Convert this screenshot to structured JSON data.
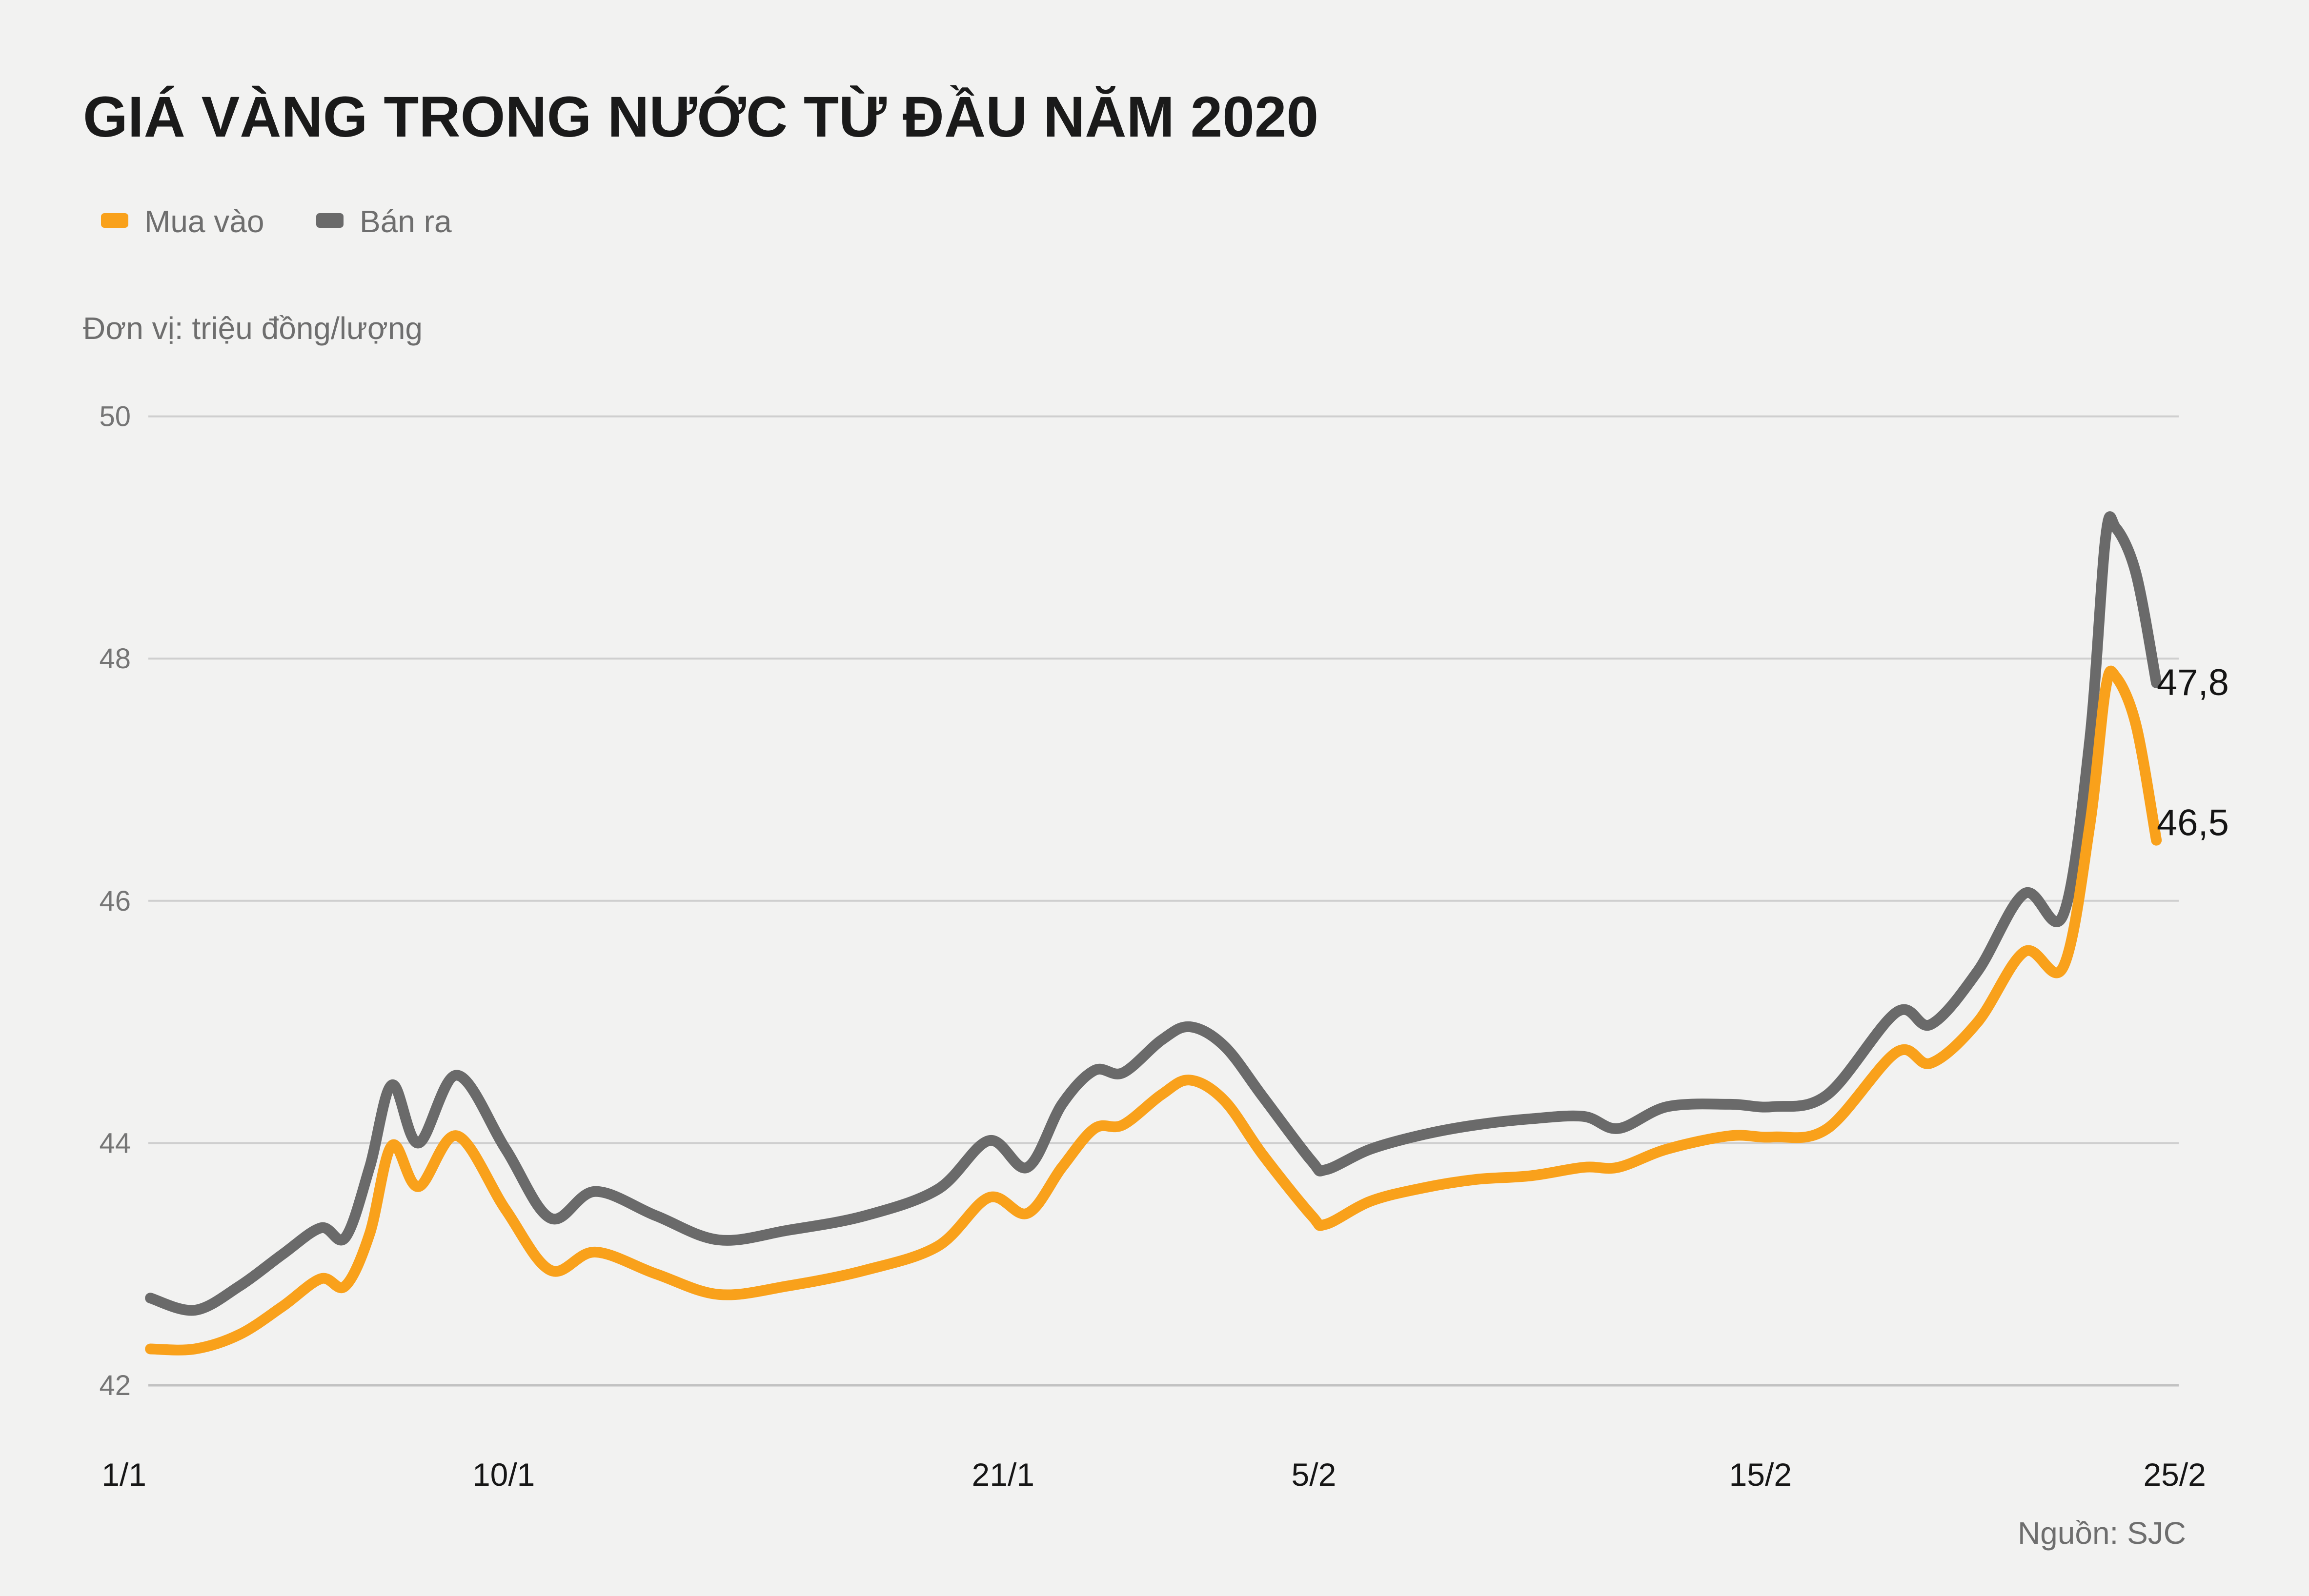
{
  "title": "GIÁ VÀNG TRONG NƯỚC TỪ ĐẦU NĂM 2020",
  "subtitle": "Đơn vị: triệu đồng/lượng",
  "source": "Nguồn: SJC",
  "legend": {
    "buy_label": "Mua vào",
    "sell_label": "Bán ra"
  },
  "colors": {
    "background": "#f2f2f1",
    "buy_orange": "#F9A11B",
    "sell_gray": "#6A6A6A",
    "grid": "#cfcfcf",
    "baseline": "#c2c2c2",
    "title_text": "#1a1a1a",
    "muted_text": "#6e6e6e",
    "ytick_text": "#757575",
    "xtick_text": "#161616"
  },
  "chart_data": {
    "type": "line",
    "title": "GIÁ VÀNG TRONG NƯỚC TỪ ĐẦU NĂM 2020",
    "unit": "triệu đồng/lượng",
    "xlabel": "",
    "ylabel": "",
    "ylim": [
      42,
      50
    ],
    "grid": "horizontal-only",
    "legend_position": "top-left",
    "y_ticks": [
      42,
      44,
      46,
      48,
      50
    ],
    "x_tick_labels": [
      "1/1",
      "10/1",
      "21/1",
      "5/2",
      "15/2",
      "25/2"
    ],
    "x_tick_f": [
      -0.012,
      0.175,
      0.421,
      0.574,
      0.794,
      0.998
    ],
    "x": [
      0.001,
      0.023,
      0.045,
      0.066,
      0.085,
      0.097,
      0.109,
      0.12,
      0.133,
      0.152,
      0.176,
      0.198,
      0.22,
      0.25,
      0.281,
      0.315,
      0.353,
      0.389,
      0.414,
      0.433,
      0.45,
      0.466,
      0.48,
      0.499,
      0.513,
      0.53,
      0.549,
      0.573,
      0.58,
      0.602,
      0.628,
      0.654,
      0.681,
      0.707,
      0.724,
      0.748,
      0.779,
      0.8,
      0.827,
      0.861,
      0.878,
      0.901,
      0.924,
      0.943,
      0.956,
      0.964,
      0.969,
      0.979,
      0.989
    ],
    "series": [
      {
        "name": "Bán ra",
        "color": "#6A6A6A",
        "end_label": "47,8",
        "end_value": 47.8,
        "values": [
          42.72,
          42.62,
          42.82,
          43.08,
          43.3,
          43.22,
          43.8,
          44.48,
          44.0,
          44.56,
          43.95,
          43.38,
          43.6,
          43.4,
          43.2,
          43.28,
          43.4,
          43.62,
          44.02,
          43.8,
          44.32,
          44.6,
          44.58,
          44.85,
          44.96,
          44.8,
          44.38,
          43.85,
          43.78,
          43.95,
          44.07,
          44.15,
          44.2,
          44.22,
          44.12,
          44.3,
          44.32,
          44.3,
          44.4,
          45.08,
          44.98,
          45.42,
          46.06,
          45.88,
          47.3,
          49.0,
          49.08,
          48.7,
          47.8
        ]
      },
      {
        "name": "Mua vào",
        "color": "#F9A11B",
        "end_label": "46,5",
        "end_value": 46.5,
        "values": [
          42.3,
          42.3,
          42.42,
          42.65,
          42.88,
          42.82,
          43.25,
          43.98,
          43.64,
          44.06,
          43.45,
          42.95,
          43.1,
          42.92,
          42.75,
          42.82,
          42.95,
          43.15,
          43.55,
          43.42,
          43.8,
          44.12,
          44.15,
          44.4,
          44.52,
          44.35,
          43.9,
          43.4,
          43.33,
          43.52,
          43.63,
          43.7,
          43.73,
          43.8,
          43.8,
          43.95,
          44.06,
          44.05,
          44.12,
          44.75,
          44.66,
          45.0,
          45.58,
          45.45,
          46.6,
          47.75,
          47.85,
          47.45,
          46.5
        ]
      }
    ]
  }
}
